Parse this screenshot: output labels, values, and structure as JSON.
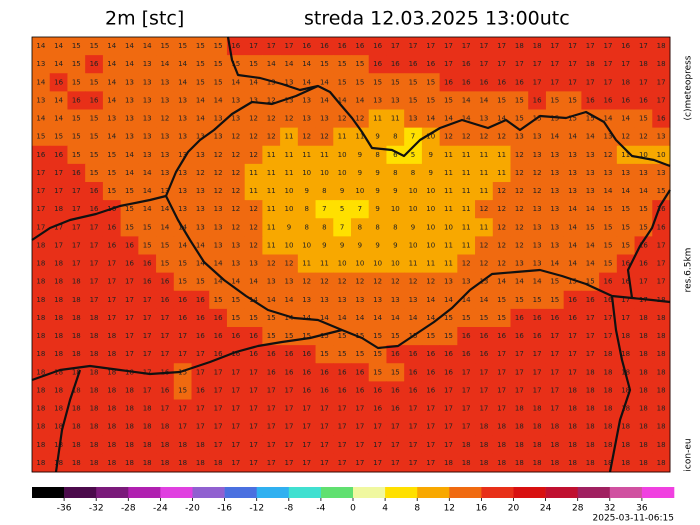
{
  "header": {
    "left_title": "2m [stc]",
    "right_title": "streda 12.03.2025 13:00utc"
  },
  "side_labels": [
    "(c)meteopress",
    "res.6.5km",
    "icon-eu"
  ],
  "footer": {
    "timestamp": "2025-03-11-06:15"
  },
  "colorbar": {
    "lim": [
      -40,
      40
    ],
    "colors": [
      "#000000",
      "#4b0a4b",
      "#7a1a7a",
      "#b020b0",
      "#e040e0",
      "#9060d0",
      "#4a70e0",
      "#30b0f0",
      "#40e0d0",
      "#60e070",
      "#f0f8a0",
      "#ffe000",
      "#f8a800",
      "#f06a10",
      "#e83018",
      "#d81010",
      "#c01030",
      "#a02060",
      "#d050a0",
      "#f040e0"
    ],
    "ticks": [
      -36,
      -32,
      -28,
      -24,
      -20,
      -16,
      -12,
      -8,
      -4,
      0,
      4,
      8,
      12,
      16,
      20,
      24,
      28,
      32,
      36
    ]
  },
  "grid": [
    [
      14,
      14,
      15,
      15,
      14,
      14,
      14,
      15,
      15,
      15,
      15,
      16,
      17,
      17,
      17,
      16,
      16,
      16,
      16,
      16,
      17,
      17,
      17,
      17,
      17,
      17,
      17,
      18,
      18,
      17,
      17,
      17,
      17,
      16,
      17,
      18
    ],
    [
      13,
      14,
      15,
      16,
      14,
      14,
      13,
      14,
      14,
      15,
      15,
      15,
      15,
      14,
      14,
      14,
      15,
      15,
      15,
      16,
      16,
      16,
      16,
      17,
      16,
      17,
      17,
      17,
      17,
      17,
      17,
      18,
      17,
      17,
      18,
      18
    ],
    [
      14,
      16,
      15,
      15,
      14,
      13,
      13,
      13,
      14,
      15,
      15,
      14,
      14,
      13,
      13,
      14,
      14,
      15,
      15,
      15,
      15,
      15,
      15,
      16,
      16,
      16,
      16,
      16,
      17,
      17,
      17,
      17,
      17,
      18,
      17,
      17
    ],
    [
      13,
      14,
      16,
      16,
      14,
      13,
      13,
      13,
      13,
      14,
      14,
      13,
      13,
      12,
      13,
      13,
      14,
      14,
      14,
      13,
      13,
      15,
      15,
      15,
      14,
      14,
      15,
      15,
      16,
      15,
      15,
      16,
      16,
      16,
      16,
      17
    ],
    [
      14,
      14,
      15,
      15,
      13,
      13,
      13,
      12,
      13,
      14,
      13,
      13,
      12,
      12,
      12,
      13,
      13,
      12,
      12,
      11,
      11,
      13,
      14,
      14,
      14,
      13,
      14,
      15,
      15,
      15,
      15,
      15,
      14,
      14,
      15,
      16
    ],
    [
      15,
      15,
      15,
      15,
      14,
      13,
      13,
      13,
      13,
      13,
      13,
      12,
      12,
      12,
      11,
      12,
      12,
      11,
      11,
      9,
      8,
      7,
      10,
      12,
      12,
      12,
      12,
      13,
      13,
      14,
      14,
      14,
      13,
      12,
      12,
      13
    ],
    [
      16,
      16,
      15,
      15,
      15,
      14,
      13,
      13,
      13,
      13,
      12,
      12,
      12,
      11,
      11,
      11,
      11,
      10,
      9,
      8,
      6,
      5,
      9,
      11,
      11,
      11,
      11,
      12,
      13,
      13,
      13,
      13,
      12,
      11,
      10,
      10
    ],
    [
      17,
      17,
      16,
      15,
      15,
      14,
      14,
      13,
      13,
      12,
      12,
      12,
      11,
      11,
      11,
      10,
      10,
      10,
      9,
      9,
      8,
      8,
      9,
      11,
      11,
      11,
      11,
      12,
      12,
      13,
      13,
      13,
      13,
      13,
      13,
      13
    ],
    [
      17,
      17,
      17,
      16,
      15,
      15,
      14,
      13,
      13,
      13,
      12,
      12,
      11,
      11,
      10,
      9,
      8,
      9,
      10,
      9,
      9,
      10,
      10,
      11,
      11,
      11,
      12,
      12,
      12,
      13,
      13,
      13,
      14,
      14,
      14,
      15
    ],
    [
      17,
      18,
      17,
      16,
      16,
      15,
      14,
      14,
      13,
      13,
      13,
      12,
      12,
      11,
      10,
      8,
      7,
      5,
      7,
      9,
      10,
      10,
      10,
      11,
      11,
      12,
      12,
      12,
      13,
      13,
      14,
      14,
      15,
      15,
      15,
      16
    ],
    [
      17,
      17,
      17,
      17,
      16,
      15,
      15,
      14,
      14,
      13,
      13,
      12,
      12,
      11,
      9,
      8,
      8,
      7,
      8,
      8,
      8,
      9,
      10,
      10,
      11,
      11,
      12,
      12,
      13,
      13,
      14,
      15,
      15,
      15,
      15,
      16
    ],
    [
      18,
      17,
      17,
      17,
      16,
      16,
      15,
      15,
      14,
      14,
      13,
      13,
      12,
      11,
      10,
      10,
      9,
      9,
      9,
      9,
      9,
      10,
      10,
      11,
      11,
      12,
      12,
      12,
      13,
      13,
      14,
      14,
      15,
      15,
      16,
      17
    ],
    [
      18,
      18,
      17,
      17,
      17,
      16,
      16,
      15,
      15,
      14,
      14,
      13,
      13,
      12,
      12,
      11,
      11,
      10,
      10,
      10,
      10,
      11,
      11,
      11,
      12,
      12,
      12,
      13,
      13,
      14,
      14,
      14,
      15,
      16,
      16,
      17
    ],
    [
      18,
      18,
      18,
      17,
      17,
      17,
      16,
      16,
      15,
      15,
      14,
      14,
      14,
      13,
      13,
      12,
      12,
      12,
      12,
      12,
      12,
      12,
      12,
      13,
      13,
      13,
      14,
      14,
      14,
      15,
      15,
      15,
      16,
      16,
      17,
      17
    ],
    [
      18,
      18,
      18,
      17,
      17,
      17,
      17,
      16,
      16,
      16,
      15,
      15,
      14,
      14,
      14,
      13,
      13,
      13,
      13,
      13,
      13,
      13,
      14,
      14,
      14,
      14,
      15,
      15,
      15,
      15,
      16,
      16,
      16,
      17,
      17,
      18
    ],
    [
      18,
      18,
      18,
      18,
      17,
      17,
      17,
      17,
      16,
      16,
      16,
      15,
      15,
      15,
      14,
      14,
      14,
      14,
      14,
      14,
      14,
      14,
      14,
      15,
      15,
      15,
      15,
      16,
      16,
      16,
      16,
      17,
      17,
      17,
      18,
      18
    ],
    [
      18,
      18,
      18,
      18,
      18,
      17,
      17,
      17,
      17,
      16,
      16,
      16,
      16,
      15,
      15,
      15,
      15,
      15,
      15,
      15,
      15,
      15,
      15,
      15,
      16,
      16,
      16,
      16,
      16,
      17,
      17,
      17,
      17,
      18,
      18,
      18
    ],
    [
      18,
      18,
      18,
      18,
      18,
      17,
      17,
      17,
      17,
      17,
      16,
      16,
      16,
      16,
      16,
      16,
      15,
      15,
      15,
      15,
      16,
      16,
      16,
      16,
      16,
      16,
      17,
      17,
      17,
      17,
      17,
      17,
      18,
      18,
      18,
      18
    ],
    [
      18,
      18,
      18,
      18,
      18,
      18,
      17,
      16,
      15,
      17,
      17,
      17,
      17,
      16,
      16,
      16,
      16,
      16,
      16,
      15,
      15,
      16,
      16,
      16,
      17,
      17,
      17,
      17,
      17,
      17,
      17,
      18,
      18,
      18,
      18,
      18
    ],
    [
      18,
      18,
      18,
      18,
      18,
      18,
      17,
      16,
      15,
      16,
      17,
      17,
      17,
      17,
      17,
      16,
      16,
      16,
      16,
      16,
      16,
      16,
      16,
      17,
      17,
      17,
      17,
      17,
      17,
      17,
      18,
      18,
      18,
      18,
      18,
      18
    ],
    [
      18,
      18,
      18,
      18,
      18,
      18,
      18,
      17,
      17,
      17,
      17,
      17,
      17,
      17,
      17,
      17,
      17,
      17,
      17,
      16,
      16,
      17,
      17,
      17,
      17,
      17,
      17,
      18,
      18,
      17,
      18,
      18,
      18,
      18,
      18,
      18
    ],
    [
      18,
      18,
      18,
      18,
      18,
      18,
      18,
      18,
      17,
      17,
      17,
      17,
      17,
      17,
      17,
      17,
      17,
      17,
      17,
      17,
      17,
      17,
      17,
      17,
      17,
      18,
      18,
      18,
      18,
      18,
      18,
      18,
      18,
      18,
      18,
      18
    ],
    [
      18,
      18,
      18,
      18,
      18,
      18,
      18,
      18,
      18,
      18,
      17,
      17,
      17,
      17,
      17,
      17,
      17,
      17,
      17,
      17,
      17,
      17,
      17,
      17,
      18,
      18,
      18,
      18,
      18,
      18,
      18,
      18,
      18,
      18,
      18,
      18
    ],
    [
      18,
      18,
      18,
      18,
      18,
      18,
      18,
      18,
      18,
      18,
      18,
      17,
      17,
      17,
      17,
      17,
      17,
      17,
      17,
      17,
      17,
      17,
      17,
      18,
      18,
      18,
      18,
      18,
      18,
      18,
      18,
      18,
      18,
      18,
      18,
      18
    ]
  ]
}
